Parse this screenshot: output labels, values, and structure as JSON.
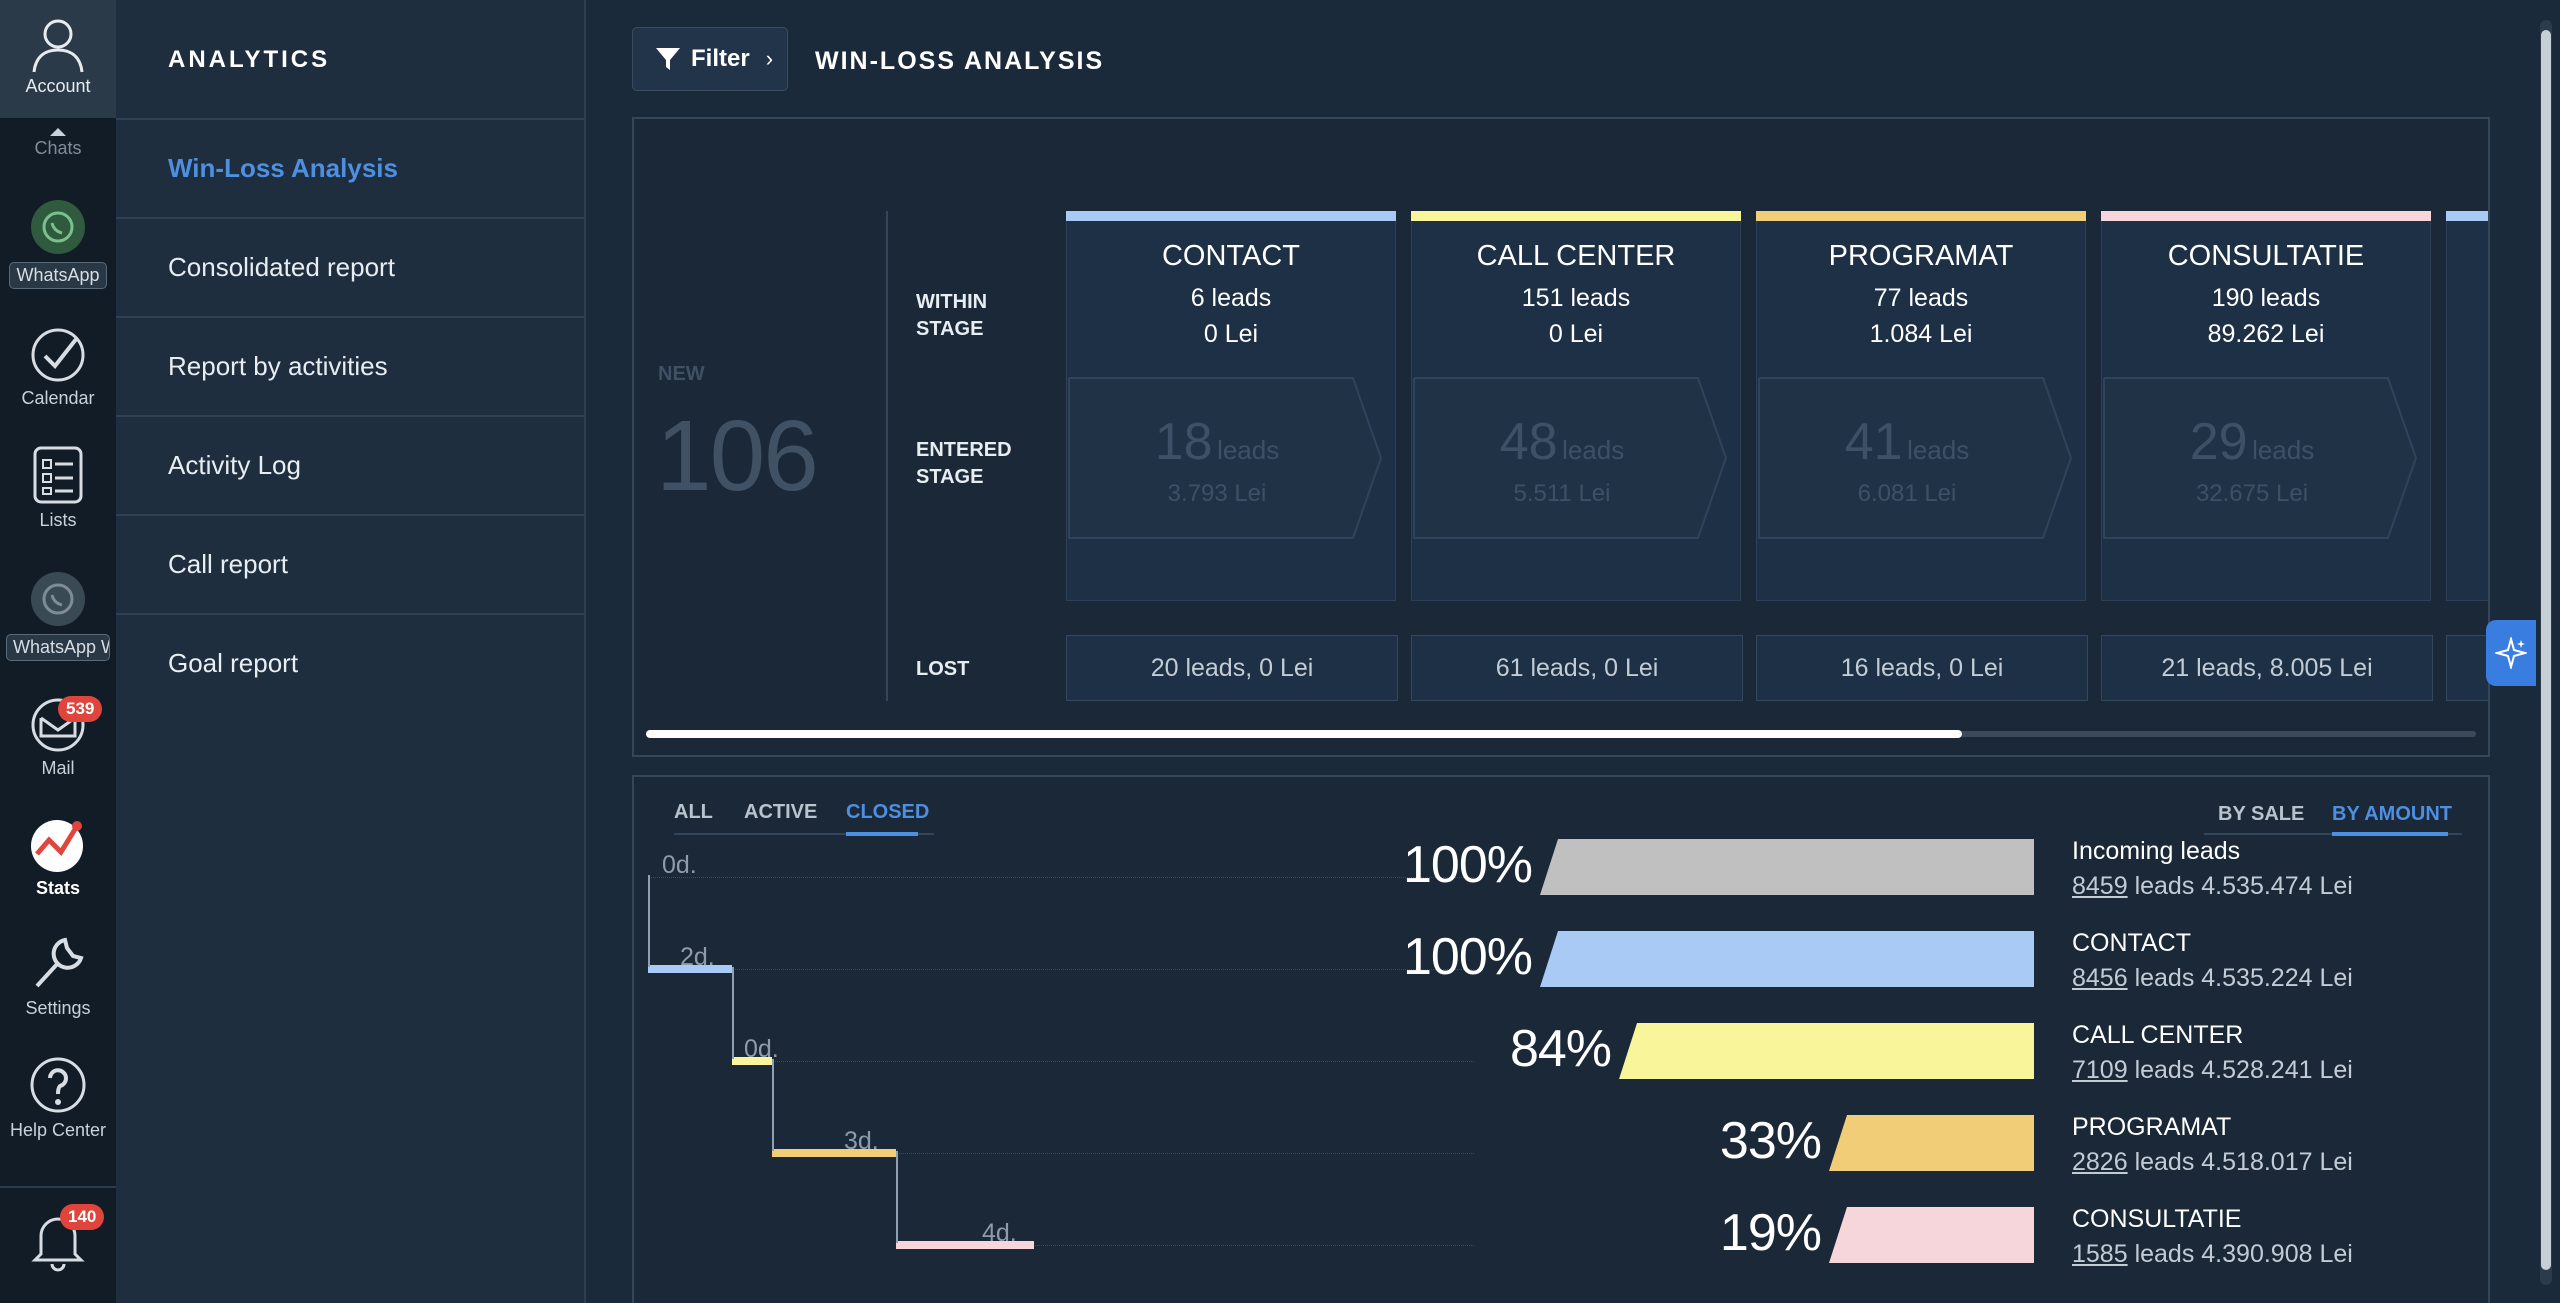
{
  "rail": {
    "account_label": "Account",
    "chats_label": "Chats",
    "whatsapp_label": "WhatsApp",
    "calendar_label": "Calendar",
    "lists_label": "Lists",
    "whatsapp2_label": "WhatsApp W",
    "mail_label": "Mail",
    "mail_badge": "539",
    "stats_label": "Stats",
    "settings_label": "Settings",
    "help_label": "Help Center",
    "notif_badge": "140"
  },
  "nav": {
    "title": "ANALYTICS",
    "items": [
      {
        "label": "Win-Loss Analysis",
        "active": true
      },
      {
        "label": "Consolidated report"
      },
      {
        "label": "Report by activities"
      },
      {
        "label": "Activity Log"
      },
      {
        "label": "Call report"
      },
      {
        "label": "Goal report"
      }
    ]
  },
  "header": {
    "filter_label": "Filter",
    "title": "WIN-LOSS ANALYSIS"
  },
  "funnel": {
    "new_label": "NEW",
    "new_value": "106",
    "row_within": "WITHIN STAGE",
    "row_entered": "ENTERED STAGE",
    "row_lost": "LOST",
    "stages": [
      {
        "name": "CONTACT",
        "leads": "6 leads",
        "lei": "0 Lei",
        "entered_n": "18",
        "entered_unit": "leads",
        "entered_lei": "3.793 Lei",
        "lost": "20 leads, 0 Lei",
        "color": "#a9caf5"
      },
      {
        "name": "CALL CENTER",
        "leads": "151 leads",
        "lei": "0 Lei",
        "entered_n": "48",
        "entered_unit": "leads",
        "entered_lei": "5.511 Lei",
        "lost": "61 leads, 0 Lei",
        "color": "#f9f59a"
      },
      {
        "name": "PROGRAMAT",
        "leads": "77 leads",
        "lei": "1.084 Lei",
        "entered_n": "41",
        "entered_unit": "leads",
        "entered_lei": "6.081 Lei",
        "lost": "16 leads, 0 Lei",
        "color": "#f1cd78"
      },
      {
        "name": "CONSULTATIE",
        "leads": "190 leads",
        "lei": "89.262 Lei",
        "entered_n": "29",
        "entered_unit": "leads",
        "entered_lei": "32.675 Lei",
        "lost": "21 leads, 8.005 Lei",
        "color": "#f6d6db"
      }
    ]
  },
  "bottom": {
    "tabs": [
      "ALL",
      "ACTIVE",
      "CLOSED"
    ],
    "active_tab": "CLOSED",
    "sort": [
      "BY SALE",
      "BY AMOUNT"
    ],
    "active_sort": "BY AMOUNT",
    "rows": [
      {
        "days": "0d.",
        "pct": "100%",
        "pct_value": 1.0,
        "color": "#c0c0c0",
        "name": "Incoming leads",
        "count": "8459",
        "rest": " leads 4.535.474 Lei"
      },
      {
        "days": "2d.",
        "pct": "100%",
        "pct_value": 1.0,
        "color": "#a9caf5",
        "name": "CONTACT",
        "count": "8456",
        "rest": " leads 4.535.224 Lei"
      },
      {
        "days": "0d.",
        "pct": "84%",
        "pct_value": 0.84,
        "color": "#f9f59a",
        "name": "CALL CENTER",
        "count": "7109",
        "rest": " leads 4.528.241 Lei"
      },
      {
        "days": "3d.",
        "pct": "33%",
        "pct_value": 0.33,
        "color": "#f1cd78",
        "name": "PROGRAMAT",
        "count": "2826",
        "rest": " leads 4.518.017 Lei"
      },
      {
        "days": "4d.",
        "pct": "19%",
        "pct_value": 0.19,
        "color": "#f6d6db",
        "name": "CONSULTATIE",
        "count": "1585",
        "rest": " leads 4.390.908 Lei"
      }
    ]
  }
}
